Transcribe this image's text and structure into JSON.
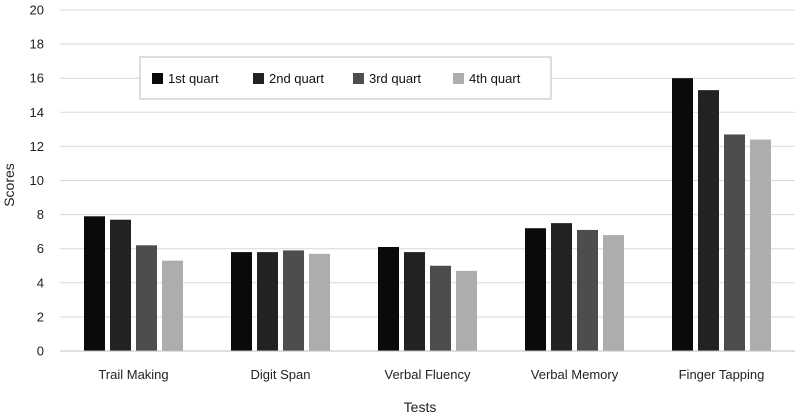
{
  "chart_data": {
    "type": "bar",
    "xlabel": "Tests",
    "ylabel": "Scores",
    "ylim": [
      0,
      20
    ],
    "yticks": [
      0,
      2,
      4,
      6,
      8,
      10,
      12,
      14,
      16,
      18,
      20
    ],
    "grid": true,
    "legend_position": "top-left",
    "categories": [
      "Trail Making",
      "Digit Span",
      "Verbal Fluency",
      "Verbal Memory",
      "Finger Tapping"
    ],
    "series": [
      {
        "name": "1st quart",
        "color": "#0a0a0a",
        "values": [
          7.9,
          5.8,
          6.1,
          7.2,
          16.0
        ]
      },
      {
        "name": "2nd quart",
        "color": "#222222",
        "values": [
          7.7,
          5.8,
          5.8,
          7.5,
          15.3
        ]
      },
      {
        "name": "3rd quart",
        "color": "#4d4d4d",
        "values": [
          6.2,
          5.9,
          5.0,
          7.1,
          12.7
        ]
      },
      {
        "name": "4th quart",
        "color": "#adadad",
        "values": [
          5.3,
          5.7,
          4.7,
          6.8,
          12.4
        ]
      }
    ]
  }
}
